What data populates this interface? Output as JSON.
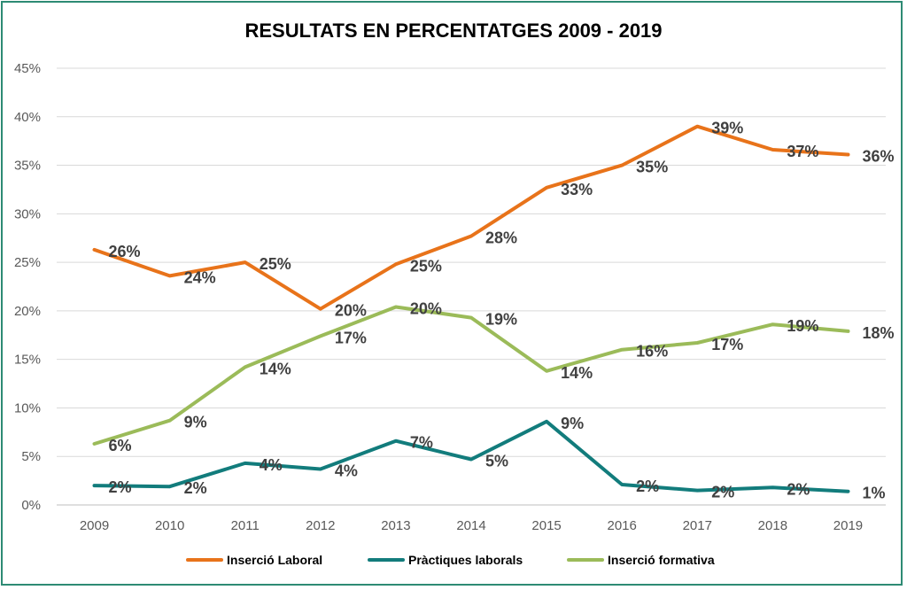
{
  "chart_data": {
    "type": "line",
    "title": "RESULTATS EN PERCENTATGES 2009 - 2019",
    "xlabel": "",
    "ylabel": "",
    "categories": [
      "2009",
      "2010",
      "2011",
      "2012",
      "2013",
      "2014",
      "2015",
      "2016",
      "2017",
      "2018",
      "2019"
    ],
    "y_ticks": [
      "0%",
      "5%",
      "10%",
      "15%",
      "20%",
      "25%",
      "30%",
      "35%",
      "40%",
      "45%"
    ],
    "ylim": [
      0,
      45
    ],
    "grid": true,
    "legend_position": "bottom",
    "series": [
      {
        "name": "Inserció Laboral",
        "color": "#e8731a",
        "values": [
          26.3,
          23.6,
          25.0,
          20.2,
          24.8,
          27.7,
          32.7,
          35.0,
          39.0,
          36.6,
          36.1
        ],
        "labels": [
          "26%",
          "24%",
          "25%",
          "20%",
          "25%",
          "28%",
          "33%",
          "35%",
          "39%",
          "37%",
          "36%"
        ]
      },
      {
        "name": "Pràctiques laborals",
        "color": "#127c7c",
        "values": [
          2.0,
          1.9,
          4.3,
          3.7,
          6.6,
          4.7,
          8.6,
          2.1,
          1.5,
          1.8,
          1.4
        ],
        "labels": [
          "2%",
          "2%",
          "4%",
          "4%",
          "7%",
          "5%",
          "9%",
          "2%",
          "2%",
          "2%",
          "1%"
        ]
      },
      {
        "name": "Inserció formativa",
        "color": "#9bbb59",
        "values": [
          6.3,
          8.7,
          14.2,
          17.4,
          20.4,
          19.3,
          13.8,
          16.0,
          16.7,
          18.6,
          17.9
        ],
        "labels": [
          "6%",
          "9%",
          "14%",
          "17%",
          "20%",
          "19%",
          "14%",
          "16%",
          "17%",
          "19%",
          "18%"
        ]
      }
    ]
  }
}
